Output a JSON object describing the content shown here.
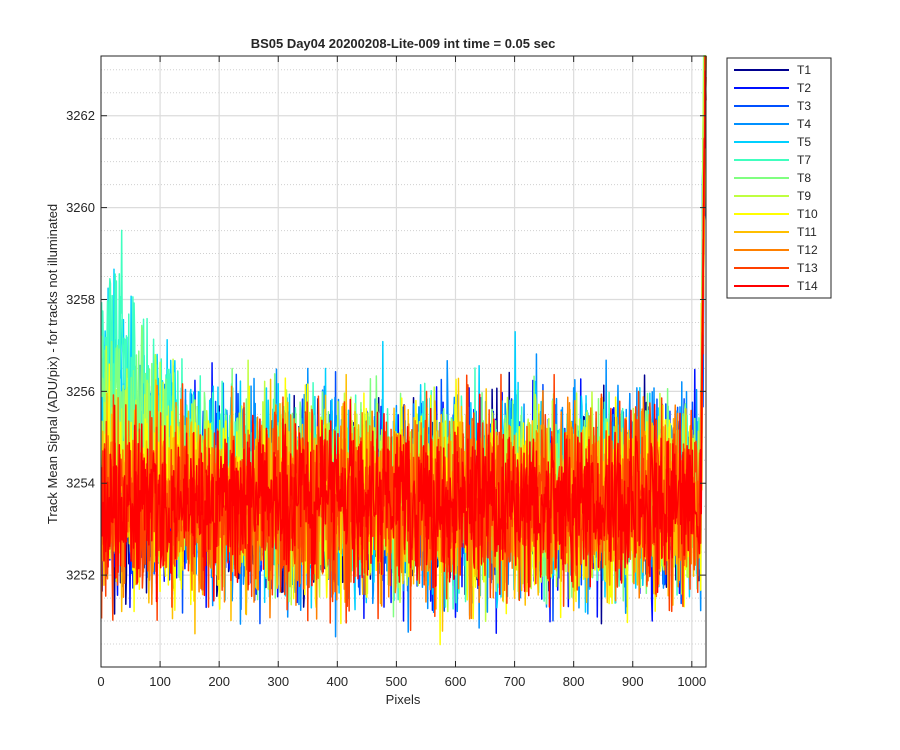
{
  "chart_data": {
    "type": "line",
    "title": "BS05 Day04 20200208-Lite-009 int time = 0.05 sec",
    "xlabel": "Pixels",
    "ylabel": "Track Mean Signal (ADU/pix) - for tracks not illuminated",
    "xlim": [
      0,
      1024
    ],
    "ylim": [
      3250,
      3263.3
    ],
    "xticks": [
      0,
      100,
      200,
      300,
      400,
      500,
      600,
      700,
      800,
      900,
      1000
    ],
    "yticks": [
      3252,
      3254,
      3256,
      3258,
      3260,
      3262
    ],
    "grid_major": true,
    "grid_minor_y": true,
    "legend_position": "outside-top-right",
    "x_points": 1024,
    "series": [
      {
        "name": "T1",
        "color": "#00008f",
        "level": 3253.6,
        "noise": 1.0,
        "hump": 0.0
      },
      {
        "name": "T2",
        "color": "#0010ff",
        "level": 3253.6,
        "noise": 1.0,
        "hump": 0.0
      },
      {
        "name": "T3",
        "color": "#0050ff",
        "level": 3253.7,
        "noise": 1.0,
        "hump": 0.3
      },
      {
        "name": "T4",
        "color": "#0090ff",
        "level": 3253.8,
        "noise": 1.1,
        "hump": 1.6
      },
      {
        "name": "T5",
        "color": "#00d0ff",
        "level": 3253.8,
        "noise": 1.1,
        "hump": 3.2
      },
      {
        "name": "T7",
        "color": "#40ffbf",
        "level": 3253.8,
        "noise": 1.0,
        "hump": 3.6
      },
      {
        "name": "T8",
        "color": "#80ff80",
        "level": 3253.7,
        "noise": 1.0,
        "hump": 2.4
      },
      {
        "name": "T9",
        "color": "#bfff40",
        "level": 3253.7,
        "noise": 1.0,
        "hump": 1.2
      },
      {
        "name": "T10",
        "color": "#ffff00",
        "level": 3253.6,
        "noise": 1.0,
        "hump": 0.4
      },
      {
        "name": "T11",
        "color": "#ffbf00",
        "level": 3253.6,
        "noise": 1.0,
        "hump": 0.0
      },
      {
        "name": "T12",
        "color": "#ff8000",
        "level": 3253.6,
        "noise": 1.0,
        "hump": 0.0
      },
      {
        "name": "T13",
        "color": "#ff4000",
        "level": 3253.6,
        "noise": 1.0,
        "hump": 0.0
      },
      {
        "name": "T14",
        "color": "#ff0000",
        "level": 3253.6,
        "noise": 0.85,
        "hump": 0.0
      }
    ]
  }
}
